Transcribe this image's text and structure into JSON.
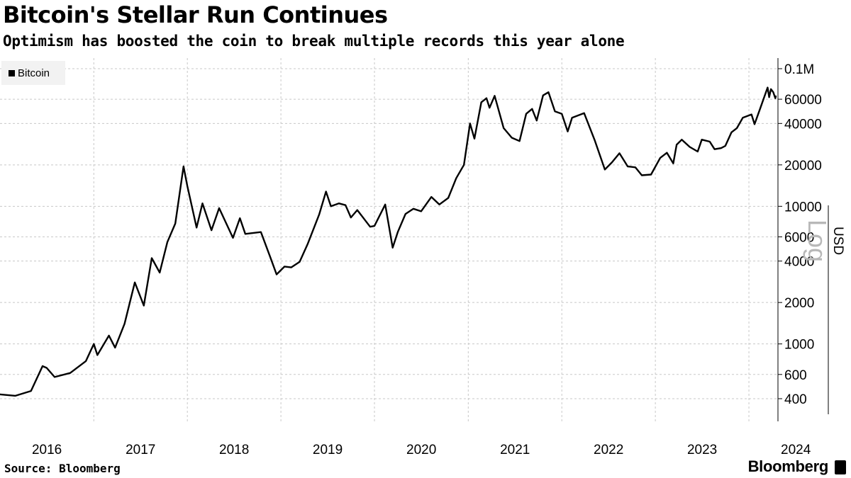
{
  "header": {
    "title": "Bitcoin's Stellar Run Continues",
    "subtitle": "Optimism has boosted the coin to break multiple records this year alone"
  },
  "footer": {
    "source": "Source: Bloomberg",
    "brand": "Bloomberg"
  },
  "chart_data": {
    "type": "line",
    "title": "Bitcoin's Stellar Run Continues",
    "subtitle": "Optimism has boosted the coin to break multiple records this year alone",
    "xlabel": "",
    "ylabel": "USD",
    "scale_label": "Log",
    "y_scale": "log",
    "ylim": [
      300,
      100000
    ],
    "xlim": [
      "2016-01-01",
      "2024-04-15"
    ],
    "x_ticks": [
      "2016",
      "2017",
      "2018",
      "2019",
      "2020",
      "2021",
      "2022",
      "2023",
      "2024"
    ],
    "y_ticks": [
      {
        "value": 100000,
        "label": "0.1M"
      },
      {
        "value": 60000,
        "label": "60000"
      },
      {
        "value": 40000,
        "label": "40000"
      },
      {
        "value": 20000,
        "label": "20000"
      },
      {
        "value": 10000,
        "label": "10000"
      },
      {
        "value": 6000,
        "label": "6000"
      },
      {
        "value": 4000,
        "label": "4000"
      },
      {
        "value": 2000,
        "label": "2000"
      },
      {
        "value": 1000,
        "label": "1000"
      },
      {
        "value": 600,
        "label": "600"
      },
      {
        "value": 400,
        "label": "400"
      }
    ],
    "grid": true,
    "legend_position": "top-left",
    "colors": {
      "line": "#000000",
      "grid": "#c8c8c8",
      "legend_bg": "#f2f2f2"
    },
    "series": [
      {
        "name": "Bitcoin",
        "points": [
          [
            "2016-01-01",
            430
          ],
          [
            "2016-03-01",
            420
          ],
          [
            "2016-05-01",
            455
          ],
          [
            "2016-06-15",
            690
          ],
          [
            "2016-07-01",
            670
          ],
          [
            "2016-08-01",
            575
          ],
          [
            "2016-10-01",
            615
          ],
          [
            "2016-12-01",
            750
          ],
          [
            "2017-01-01",
            1000
          ],
          [
            "2017-01-15",
            830
          ],
          [
            "2017-03-01",
            1150
          ],
          [
            "2017-03-25",
            940
          ],
          [
            "2017-05-01",
            1400
          ],
          [
            "2017-06-10",
            2800
          ],
          [
            "2017-07-15",
            1900
          ],
          [
            "2017-08-15",
            4200
          ],
          [
            "2017-09-15",
            3300
          ],
          [
            "2017-10-15",
            5500
          ],
          [
            "2017-11-15",
            7500
          ],
          [
            "2017-12-17",
            19500
          ],
          [
            "2018-01-01",
            14000
          ],
          [
            "2018-02-06",
            7000
          ],
          [
            "2018-03-01",
            10500
          ],
          [
            "2018-04-05",
            6700
          ],
          [
            "2018-05-05",
            9700
          ],
          [
            "2018-06-28",
            5900
          ],
          [
            "2018-07-25",
            8200
          ],
          [
            "2018-08-15",
            6300
          ],
          [
            "2018-10-15",
            6500
          ],
          [
            "2018-11-20",
            4300
          ],
          [
            "2018-12-15",
            3200
          ],
          [
            "2019-01-15",
            3650
          ],
          [
            "2019-02-10",
            3600
          ],
          [
            "2019-03-15",
            3950
          ],
          [
            "2019-04-15",
            5300
          ],
          [
            "2019-05-30",
            8700
          ],
          [
            "2019-06-26",
            12800
          ],
          [
            "2019-07-15",
            10000
          ],
          [
            "2019-08-15",
            10500
          ],
          [
            "2019-09-10",
            10200
          ],
          [
            "2019-10-01",
            8300
          ],
          [
            "2019-10-26",
            9400
          ],
          [
            "2019-12-15",
            7100
          ],
          [
            "2020-01-01",
            7200
          ],
          [
            "2020-02-12",
            10300
          ],
          [
            "2020-03-12",
            5000
          ],
          [
            "2020-04-01",
            6500
          ],
          [
            "2020-05-01",
            8800
          ],
          [
            "2020-06-01",
            9600
          ],
          [
            "2020-07-01",
            9200
          ],
          [
            "2020-08-10",
            11700
          ],
          [
            "2020-09-10",
            10300
          ],
          [
            "2020-10-15",
            11500
          ],
          [
            "2020-11-15",
            16000
          ],
          [
            "2020-12-15",
            20000
          ],
          [
            "2021-01-08",
            40000
          ],
          [
            "2021-01-25",
            31000
          ],
          [
            "2021-02-21",
            57000
          ],
          [
            "2021-03-13",
            61000
          ],
          [
            "2021-03-25",
            52000
          ],
          [
            "2021-04-14",
            63500
          ],
          [
            "2021-05-19",
            37000
          ],
          [
            "2021-06-20",
            31500
          ],
          [
            "2021-07-20",
            29800
          ],
          [
            "2021-08-15",
            47000
          ],
          [
            "2021-09-07",
            51000
          ],
          [
            "2021-09-25",
            42000
          ],
          [
            "2021-10-20",
            64000
          ],
          [
            "2021-11-10",
            67500
          ],
          [
            "2021-12-05",
            49000
          ],
          [
            "2022-01-01",
            47000
          ],
          [
            "2022-01-24",
            35000
          ],
          [
            "2022-02-10",
            44000
          ],
          [
            "2022-03-29",
            47500
          ],
          [
            "2022-05-10",
            30000
          ],
          [
            "2022-06-18",
            18500
          ],
          [
            "2022-07-15",
            20800
          ],
          [
            "2022-08-14",
            24300
          ],
          [
            "2022-09-15",
            19500
          ],
          [
            "2022-10-15",
            19200
          ],
          [
            "2022-11-09",
            16800
          ],
          [
            "2022-12-15",
            17000
          ],
          [
            "2023-01-20",
            22500
          ],
          [
            "2023-02-15",
            24500
          ],
          [
            "2023-03-12",
            20500
          ],
          [
            "2023-03-25",
            28000
          ],
          [
            "2023-04-14",
            30500
          ],
          [
            "2023-05-15",
            27000
          ],
          [
            "2023-06-15",
            25000
          ],
          [
            "2023-07-01",
            30500
          ],
          [
            "2023-08-01",
            29500
          ],
          [
            "2023-08-20",
            26000
          ],
          [
            "2023-09-15",
            26500
          ],
          [
            "2023-10-01",
            27500
          ],
          [
            "2023-10-25",
            34500
          ],
          [
            "2023-11-15",
            37000
          ],
          [
            "2023-12-08",
            44000
          ],
          [
            "2024-01-11",
            46500
          ],
          [
            "2024-01-23",
            39500
          ],
          [
            "2024-02-15",
            52000
          ],
          [
            "2024-03-14",
            73000
          ],
          [
            "2024-03-20",
            62000
          ],
          [
            "2024-03-27",
            71000
          ],
          [
            "2024-04-05",
            67500
          ],
          [
            "2024-04-13",
            61000
          ],
          [
            "2024-04-15",
            63000
          ]
        ]
      }
    ]
  }
}
